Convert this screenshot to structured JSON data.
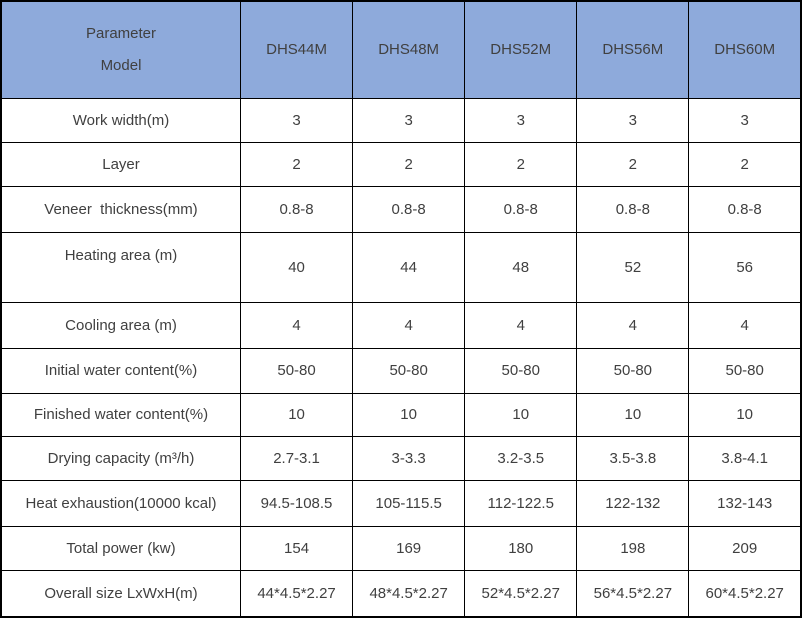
{
  "table": {
    "corner": {
      "line1": "Parameter",
      "line2": "Model"
    },
    "columns": [
      "DHS44M",
      "DHS48M",
      "DHS52M",
      "DHS56M",
      "DHS60M"
    ],
    "rows": [
      {
        "label": "Work width(m)",
        "values": [
          "3",
          "3",
          "3",
          "3",
          "3"
        ]
      },
      {
        "label": "Layer",
        "values": [
          "2",
          "2",
          "2",
          "2",
          "2"
        ]
      },
      {
        "label": "Veneer  thickness(mm)",
        "values": [
          "0.8-8",
          "0.8-8",
          "0.8-8",
          "0.8-8",
          "0.8-8"
        ]
      },
      {
        "label": "Heating area (m)",
        "values": [
          "40",
          "44",
          "48",
          "52",
          "56"
        ]
      },
      {
        "label": "Cooling area (m)",
        "values": [
          "4",
          "4",
          "4",
          "4",
          "4"
        ]
      },
      {
        "label": "Initial water content(%)",
        "values": [
          "50-80",
          "50-80",
          "50-80",
          "50-80",
          "50-80"
        ]
      },
      {
        "label": "Finished water content(%)",
        "values": [
          "10",
          "10",
          "10",
          "10",
          "10"
        ]
      },
      {
        "label": "Drying capacity (m³/h)",
        "values": [
          "2.7-3.1",
          "3-3.3",
          "3.2-3.5",
          "3.5-3.8",
          "3.8-4.1"
        ]
      },
      {
        "label": "Heat exhaustion(10000 kcal)",
        "values": [
          "94.5-108.5",
          "105-115.5",
          "112-122.5",
          "122-132",
          "132-143"
        ]
      },
      {
        "label": "Total power (kw)",
        "values": [
          "154",
          "169",
          "180",
          "198",
          "209"
        ]
      },
      {
        "label": "Overall size LxWxH(m)",
        "values": [
          "44*4.5*2.27",
          "48*4.5*2.27",
          "52*4.5*2.27",
          "56*4.5*2.27",
          "60*4.5*2.27"
        ]
      }
    ],
    "colors": {
      "header_bg": "#8EAADB",
      "border": "#000000",
      "text": "#404040"
    }
  }
}
